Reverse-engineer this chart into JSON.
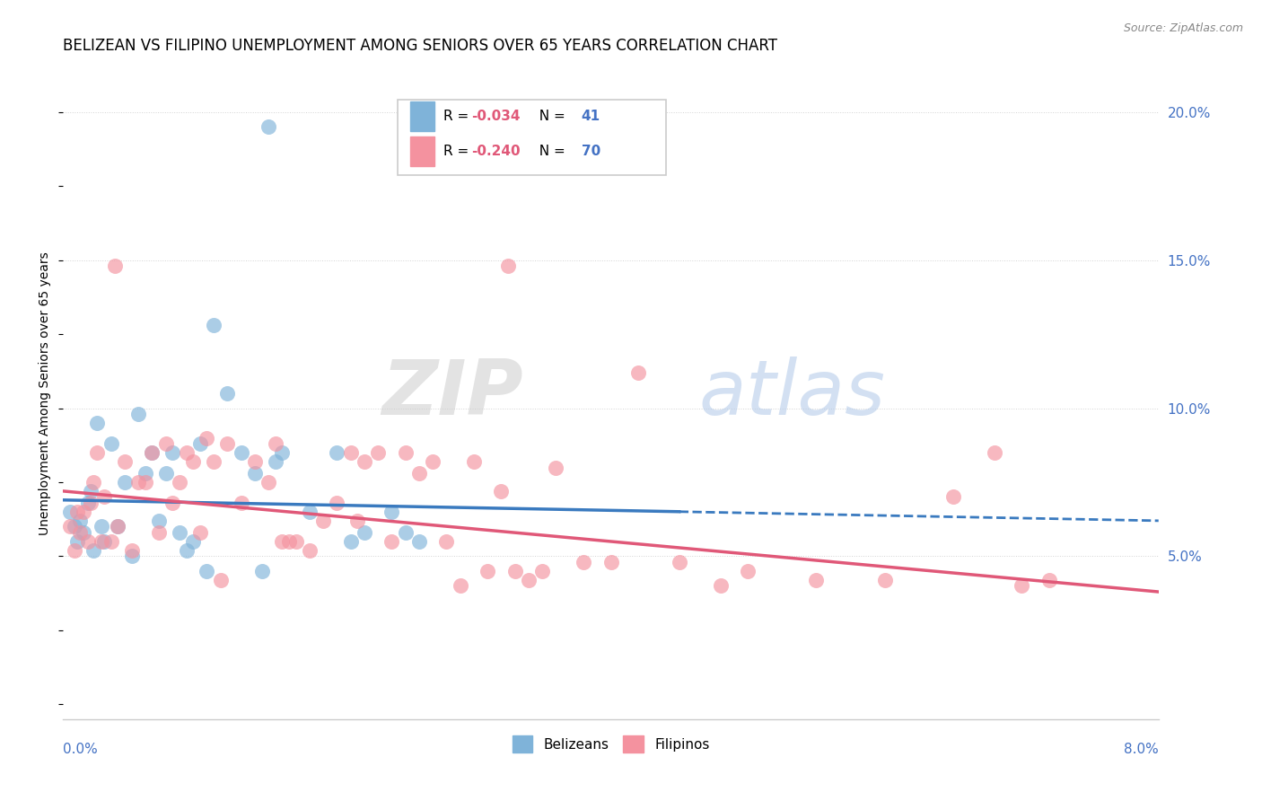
{
  "title": "BELIZEAN VS FILIPINO UNEMPLOYMENT AMONG SENIORS OVER 65 YEARS CORRELATION CHART",
  "source": "Source: ZipAtlas.com",
  "ylabel": "Unemployment Among Seniors over 65 years",
  "ylabel_right_ticks": [
    0.0,
    5.0,
    10.0,
    15.0,
    20.0
  ],
  "ylabel_right_labels": [
    "",
    "5.0%",
    "10.0%",
    "15.0%",
    "20.0%"
  ],
  "xlim": [
    0.0,
    8.0
  ],
  "ylim": [
    -0.5,
    21.5
  ],
  "watermark_zip": "ZIP",
  "watermark_atlas": "atlas",
  "belizean_color": "#7fb3d9",
  "filipino_color": "#f4929f",
  "trendline_blue": "#3a7abf",
  "trendline_pink": "#e05878",
  "belizean_x": [
    0.05,
    0.08,
    0.1,
    0.12,
    0.15,
    0.18,
    0.2,
    0.22,
    0.25,
    0.28,
    0.3,
    0.35,
    0.4,
    0.45,
    0.5,
    0.55,
    0.6,
    0.65,
    0.7,
    0.75,
    0.8,
    0.85,
    0.9,
    0.95,
    1.0,
    1.05,
    1.1,
    1.2,
    1.3,
    1.4,
    1.5,
    1.55,
    1.6,
    1.8,
    2.0,
    2.1,
    2.2,
    2.4,
    2.5,
    2.6,
    1.45
  ],
  "belizean_y": [
    6.5,
    6.0,
    5.5,
    6.2,
    5.8,
    6.8,
    7.2,
    5.2,
    9.5,
    6.0,
    5.5,
    8.8,
    6.0,
    7.5,
    5.0,
    9.8,
    7.8,
    8.5,
    6.2,
    7.8,
    8.5,
    5.8,
    5.2,
    5.5,
    8.8,
    4.5,
    12.8,
    10.5,
    8.5,
    7.8,
    19.5,
    8.2,
    8.5,
    6.5,
    8.5,
    5.5,
    5.8,
    6.5,
    5.8,
    5.5,
    4.5
  ],
  "filipino_x": [
    0.05,
    0.08,
    0.1,
    0.12,
    0.15,
    0.18,
    0.2,
    0.22,
    0.25,
    0.28,
    0.3,
    0.35,
    0.4,
    0.45,
    0.5,
    0.55,
    0.6,
    0.65,
    0.7,
    0.75,
    0.8,
    0.85,
    0.9,
    0.95,
    1.0,
    1.05,
    1.1,
    1.2,
    1.3,
    1.4,
    1.5,
    1.55,
    1.6,
    1.7,
    1.8,
    1.9,
    2.0,
    2.1,
    2.2,
    2.3,
    2.4,
    2.5,
    2.6,
    2.7,
    2.8,
    2.9,
    3.0,
    3.1,
    3.2,
    3.3,
    3.4,
    3.5,
    3.6,
    3.8,
    4.0,
    4.2,
    4.5,
    5.0,
    5.5,
    6.0,
    6.8,
    7.0,
    7.2,
    3.25,
    1.65,
    0.38,
    1.15,
    2.15,
    4.8,
    6.5
  ],
  "filipino_y": [
    6.0,
    5.2,
    6.5,
    5.8,
    6.5,
    5.5,
    6.8,
    7.5,
    8.5,
    5.5,
    7.0,
    5.5,
    6.0,
    8.2,
    5.2,
    7.5,
    7.5,
    8.5,
    5.8,
    8.8,
    6.8,
    7.5,
    8.5,
    8.2,
    5.8,
    9.0,
    8.2,
    8.8,
    6.8,
    8.2,
    7.5,
    8.8,
    5.5,
    5.5,
    5.2,
    6.2,
    6.8,
    8.5,
    8.2,
    8.5,
    5.5,
    8.5,
    7.8,
    8.2,
    5.5,
    4.0,
    8.2,
    4.5,
    7.2,
    4.5,
    4.2,
    4.5,
    8.0,
    4.8,
    4.8,
    11.2,
    4.8,
    4.5,
    4.2,
    4.2,
    8.5,
    4.0,
    4.2,
    14.8,
    5.5,
    14.8,
    4.2,
    6.2,
    4.0,
    7.0
  ],
  "trend_blue_x0": 0.0,
  "trend_blue_y0": 6.9,
  "trend_blue_x_solid_end": 4.5,
  "trend_blue_x1": 8.0,
  "trend_blue_y1": 6.2,
  "trend_pink_x0": 0.0,
  "trend_pink_y0": 7.2,
  "trend_pink_x1": 8.0,
  "trend_pink_y1": 3.8
}
